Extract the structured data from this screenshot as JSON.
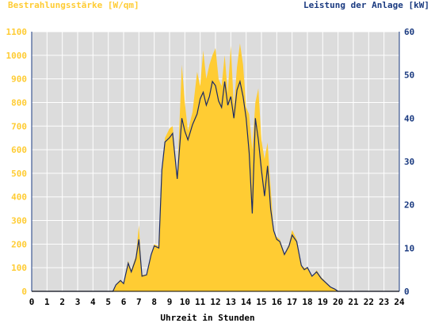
{
  "colors": {
    "plot_bg": "#dcdcdc",
    "irradiance_fill": "#ffcc33",
    "power_line": "#1a2a66",
    "left_axis": "#ffcc33",
    "right_axis": "#1a3a80",
    "bottom_axis": "#000000",
    "grid": "#ffffff"
  },
  "chart_data": {
    "type": "area",
    "left_axis_label": "Bestrahlungsstärke [W/qm]",
    "right_axis_label": "Leistung der Anlage [kW]",
    "xlabel": "Uhrzeit in Stunden",
    "xlim": [
      0,
      24
    ],
    "ylim_left": [
      0,
      1100
    ],
    "ylim_right": [
      0,
      60
    ],
    "x_ticks": [
      "0",
      "1",
      "2",
      "3",
      "4",
      "5",
      "6",
      "7",
      "8",
      "9",
      "10",
      "11",
      "12",
      "13",
      "14",
      "15",
      "16",
      "17",
      "18",
      "19",
      "20",
      "21",
      "22",
      "23",
      "24"
    ],
    "y_ticks_left": [
      "0",
      "100",
      "200",
      "300",
      "400",
      "500",
      "600",
      "700",
      "800",
      "900",
      "1000",
      "1100"
    ],
    "y_ticks_right": [
      "0",
      "10",
      "20",
      "30",
      "40",
      "50",
      "60"
    ],
    "grid": true,
    "series": [
      {
        "name": "Bestrahlungsstärke [W/qm]",
        "axis": "left",
        "style": "area",
        "x": [
          0,
          5.3,
          5.5,
          5.8,
          6.0,
          6.3,
          6.5,
          6.8,
          7.0,
          7.2,
          7.5,
          7.8,
          8.0,
          8.3,
          8.5,
          8.7,
          9.0,
          9.2,
          9.5,
          9.8,
          10.0,
          10.2,
          10.5,
          10.8,
          11.0,
          11.2,
          11.4,
          11.6,
          11.8,
          12.0,
          12.2,
          12.4,
          12.6,
          12.8,
          13.0,
          13.2,
          13.4,
          13.6,
          13.8,
          14.0,
          14.2,
          14.4,
          14.6,
          14.8,
          15.0,
          15.2,
          15.4,
          15.6,
          15.8,
          16.0,
          16.2,
          16.5,
          16.8,
          17.0,
          17.3,
          17.6,
          17.8,
          18.0,
          18.3,
          18.6,
          18.9,
          19.2,
          19.5,
          19.8,
          20.0,
          20.3,
          24
        ],
        "values": [
          0,
          0,
          30,
          50,
          35,
          130,
          90,
          150,
          280,
          70,
          70,
          160,
          200,
          190,
          520,
          650,
          690,
          700,
          480,
          960,
          800,
          680,
          760,
          930,
          870,
          1020,
          900,
          960,
          1000,
          1030,
          900,
          870,
          1000,
          840,
          1040,
          780,
          950,
          1050,
          960,
          780,
          750,
          600,
          800,
          860,
          640,
          560,
          630,
          440,
          250,
          230,
          220,
          160,
          200,
          260,
          220,
          110,
          100,
          100,
          60,
          90,
          60,
          40,
          20,
          10,
          0,
          0,
          0
        ]
      },
      {
        "name": "Leistung der Anlage [kW]",
        "axis": "right",
        "style": "line",
        "x": [
          0,
          5.3,
          5.5,
          5.8,
          6.0,
          6.3,
          6.5,
          6.8,
          7.0,
          7.2,
          7.5,
          7.8,
          8.0,
          8.3,
          8.5,
          8.7,
          9.0,
          9.2,
          9.5,
          9.8,
          10.0,
          10.2,
          10.5,
          10.8,
          11.0,
          11.2,
          11.4,
          11.6,
          11.8,
          12.0,
          12.2,
          12.4,
          12.6,
          12.8,
          13.0,
          13.2,
          13.4,
          13.6,
          13.8,
          14.0,
          14.2,
          14.4,
          14.6,
          14.8,
          15.0,
          15.2,
          15.4,
          15.6,
          15.8,
          16.0,
          16.2,
          16.5,
          16.8,
          17.0,
          17.3,
          17.6,
          17.8,
          18.0,
          18.3,
          18.6,
          18.9,
          19.2,
          19.5,
          19.8,
          20.0,
          20.3,
          24
        ],
        "values": [
          0,
          0,
          1.5,
          2.5,
          1.8,
          6.5,
          4.5,
          7.5,
          12.0,
          3.5,
          3.8,
          8.5,
          10.5,
          10.0,
          28.0,
          34.5,
          35.5,
          36.5,
          26.0,
          40.0,
          37.0,
          35.0,
          38.5,
          41.0,
          44.5,
          46.0,
          43.0,
          45.0,
          48.5,
          47.5,
          44.0,
          42.5,
          48.5,
          43.0,
          45.0,
          40.0,
          46.5,
          48.5,
          45.0,
          40.0,
          32.0,
          18.0,
          40.0,
          35.0,
          28.0,
          22.0,
          29.0,
          19.0,
          14.0,
          12.0,
          11.5,
          8.5,
          10.5,
          13.0,
          11.5,
          6.0,
          5.0,
          5.5,
          3.5,
          4.5,
          3.0,
          2.0,
          1.0,
          0.5,
          0,
          0,
          0
        ]
      }
    ]
  }
}
